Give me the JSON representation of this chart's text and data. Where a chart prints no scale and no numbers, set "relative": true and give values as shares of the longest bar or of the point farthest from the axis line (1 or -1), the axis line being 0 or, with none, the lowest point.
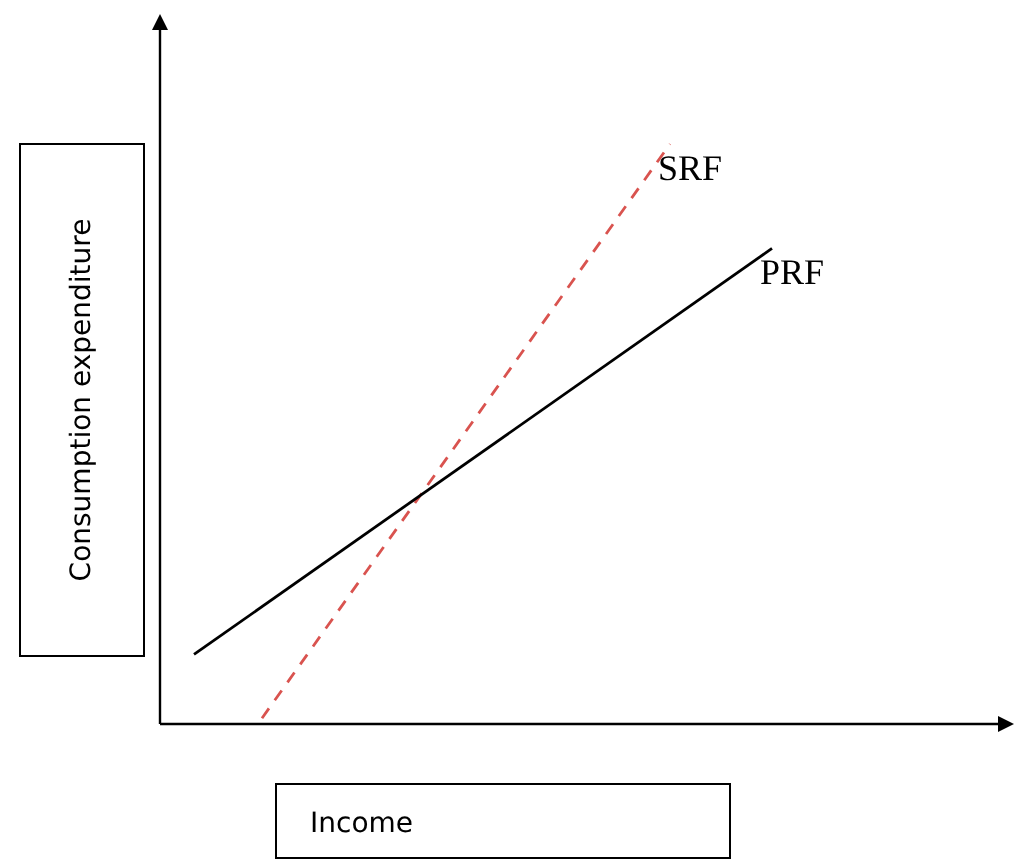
{
  "chart_data": {
    "type": "line",
    "relative": true,
    "xlabel": "Income",
    "ylabel": "Consumption expenditure",
    "marker": "none",
    "categories": [
      null,
      null,
      null,
      null,
      null,
      null,
      null,
      null,
      null,
      null,
      null,
      null,
      null,
      null,
      null,
      null,
      null,
      null,
      null,
      null,
      null,
      null,
      null,
      null
    ],
    "series": [
      {
        "name": "SRF",
        "color": "#d9534f",
        "line_style": "dashed",
        "values": [
          null,
          null,
          0.01,
          null,
          null,
          null,
          null,
          null,
          null,
          null,
          null,
          null,
          null,
          null,
          1,
          null,
          null,
          null,
          null,
          null,
          null,
          null,
          null,
          null
        ]
      },
      {
        "name": "PRF",
        "color": "#000000",
        "line_style": "solid",
        "values": [
          0.12,
          null,
          null,
          null,
          null,
          null,
          null,
          null,
          null,
          null,
          null,
          null,
          null,
          null,
          null,
          null,
          null,
          0.82,
          null,
          null,
          null,
          null,
          null,
          null
        ]
      }
    ]
  }
}
